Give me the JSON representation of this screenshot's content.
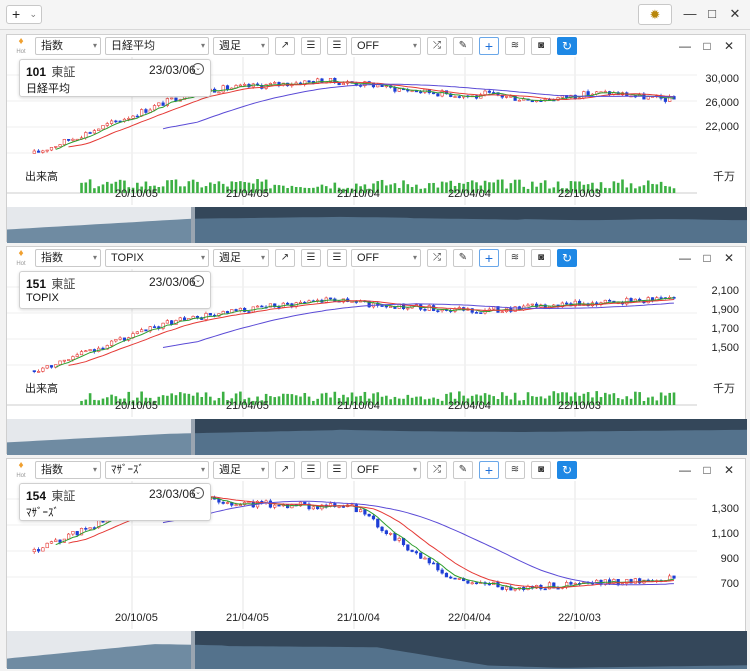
{
  "topbar": {
    "add_label": "+",
    "add_chevron": "⌄",
    "gear_icon": "sun-gear-icon",
    "minimize": "—",
    "maximize": "□",
    "close": "✕"
  },
  "toolbar_common": {
    "hot_label": "Hot",
    "type_label": "指数",
    "period_label": "週足",
    "off_label": "OFF"
  },
  "panels": [
    {
      "id": "nikkei",
      "code": "101",
      "market": "東証",
      "date": "23/03/06",
      "name": "日経平均",
      "index_select": "日経平均",
      "y_labels": [
        "30,000",
        "26,000",
        "22,000"
      ],
      "x_labels": [
        "20/10/05",
        "21/04/05",
        "21/10/04",
        "22/04/04",
        "22/10/03"
      ],
      "volume_label": "出来高",
      "unit_label": "千万"
    },
    {
      "id": "topix",
      "code": "151",
      "market": "東証",
      "date": "23/03/06",
      "name": "TOPIX",
      "index_select": "TOPIX",
      "y_labels": [
        "2,100",
        "1,900",
        "1,700",
        "1,500"
      ],
      "x_labels": [
        "20/10/05",
        "21/04/05",
        "21/10/04",
        "22/04/04",
        "22/10/03"
      ],
      "volume_label": "出来高",
      "unit_label": "千万"
    },
    {
      "id": "mothers",
      "code": "154",
      "market": "東証",
      "date": "23/03/06",
      "name": "ﾏｻﾞｰｽﾞ",
      "index_select": "ﾏｻﾞｰｽﾞ",
      "y_labels": [
        "1,300",
        "1,100",
        "900",
        "700"
      ],
      "x_labels": [
        "20/10/05",
        "21/04/05",
        "21/10/04",
        "22/04/04",
        "22/10/03"
      ],
      "volume_label": "",
      "unit_label": ""
    }
  ],
  "colors": {
    "up": "#e53935",
    "down": "#1e3fd6",
    "ma_short": "#2e9e2e",
    "ma_mid": "#e53935",
    "ma_long": "#5b4bd6",
    "volume": "#3cb043",
    "navigator_fill": "#4a6278",
    "accent": "#1e88e5"
  }
}
